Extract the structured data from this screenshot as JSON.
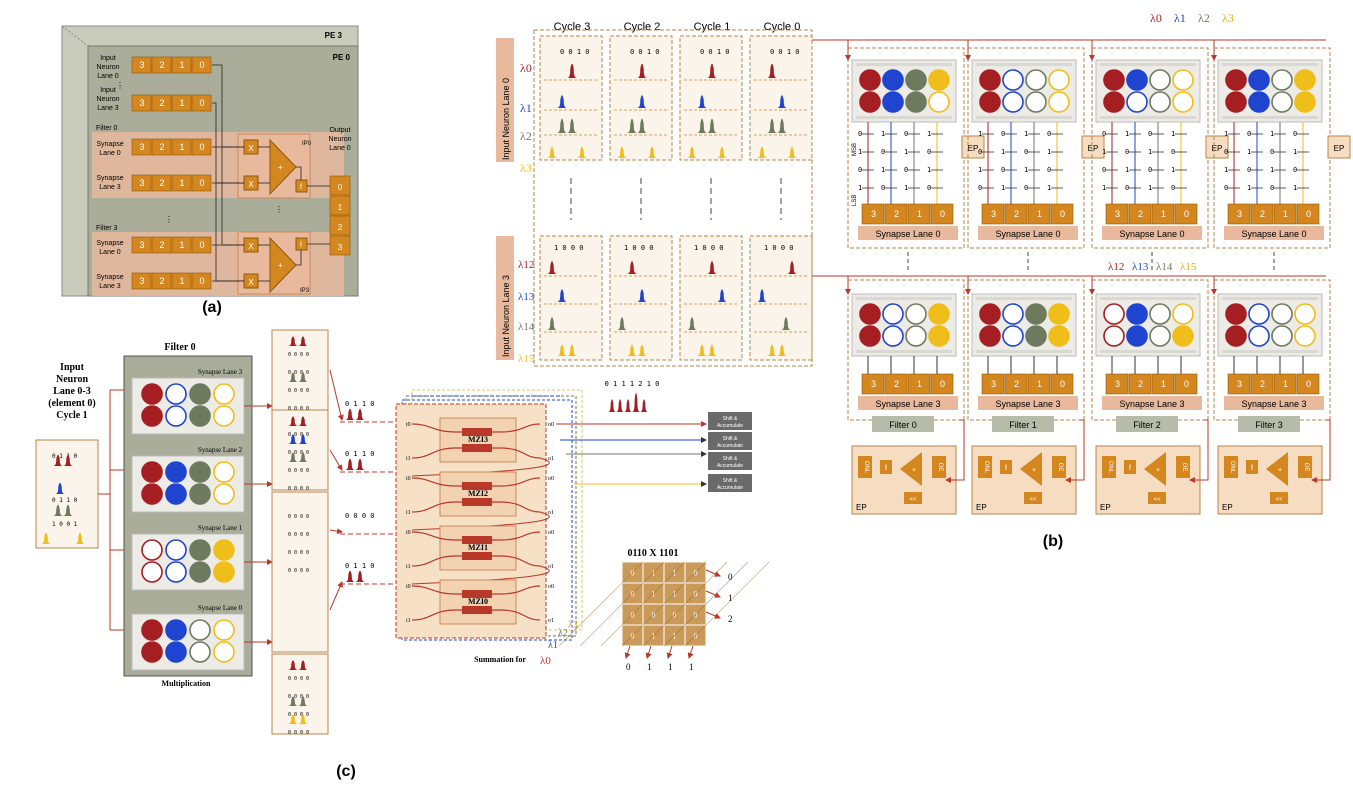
{
  "panel_a": {
    "label": "(a)",
    "pe_back": "PE 3",
    "pe_front": "PE 0",
    "input_lane0": [
      "Input",
      "Neuron",
      "Lane 0"
    ],
    "input_lane3": [
      "Input",
      "Neuron",
      "Lane 3"
    ],
    "filter0": "Filter 0",
    "filter3": "Filter 3",
    "syn_lane0": [
      "Synapse",
      "Lane 0"
    ],
    "syn_lane3": [
      "Synapse",
      "Lane 3"
    ],
    "output": [
      "Output",
      "Neuron",
      "Lane 0"
    ],
    "ip0": "IP0",
    "ip3": "IP3",
    "digits": [
      "3",
      "2",
      "1",
      "0"
    ],
    "out_digits": [
      "0",
      "1",
      "2",
      "3"
    ],
    "mul": "X",
    "add": "+",
    "f": "f"
  },
  "panel_b": {
    "label": "(b)",
    "cycles": [
      "Cycle 3",
      "Cycle 2",
      "Cycle 1",
      "Cycle 0"
    ],
    "lane0_title": "Input Neuron Lane 0",
    "lane3_title": "Input Neuron Lane 3",
    "wavelengths_top": [
      "λ0",
      "λ1",
      "λ2",
      "λ3"
    ],
    "wavelengths_bottom": [
      "λ12",
      "λ13",
      "λ14",
      "λ15"
    ],
    "bits_top": [
      "0 0 1 0",
      "0 0 1 0",
      "0 0 1 0",
      "0 0 1 0"
    ],
    "bits_bottom": [
      "1 0 0 0",
      "1 0 0 0",
      "1 0 0 0",
      "1 0 0 0"
    ],
    "msb": "MSB",
    "lsb": "LSB",
    "ep": "EP",
    "syn_lane0": "Synapse Lane 0",
    "syn_lane3": "Synapse Lane 3",
    "filters": [
      "Filter 0",
      "Filter 1",
      "Filter 2",
      "Filter 3"
    ],
    "digits": [
      "3",
      "2",
      "1",
      "0"
    ],
    "ep_labels": [
      "ONL",
      "f",
      "+",
      "OE",
      "<<"
    ]
  },
  "panel_c": {
    "label": "(c)",
    "input_title": [
      "Input",
      "Neuron",
      "Lane 0-3",
      "(element 0)",
      "Cycle 1"
    ],
    "filter": "Filter 0",
    "syn_lanes": [
      "Synapse Lane 3",
      "Synapse Lane 2",
      "Synapse Lane 1",
      "Synapse Lane 0"
    ],
    "multiplication": "Multiplication",
    "mzis": [
      "MZI3",
      "MZI2",
      "MZI1",
      "MZI0"
    ],
    "summation": "Summation for",
    "summation_lambda": "λ0",
    "lambdas": [
      "λ1",
      "λ2",
      "λ3"
    ],
    "pulse_bits": [
      "0 1 1 0",
      "0 1 1 0",
      "0 0 0 0",
      "0 1 1 0"
    ],
    "output_bits": "0 1 1 1 2 1 0",
    "shift_acc": "Shift & Accumulate",
    "mult_title": "0110 X 1101",
    "mult_right": [
      "0",
      "1",
      "2"
    ],
    "mult_bottom": [
      "0",
      "1",
      "1",
      "1"
    ]
  },
  "colors": {
    "orange": "#d4861f",
    "dark_red": "#a41e22",
    "blue": "#1f44cf",
    "green_gray": "#6e7a5e",
    "yellow": "#f0be1a",
    "pe_gray": "#a9ad99",
    "salmon": "#e8b99c",
    "wire_red": "#b8382a"
  }
}
